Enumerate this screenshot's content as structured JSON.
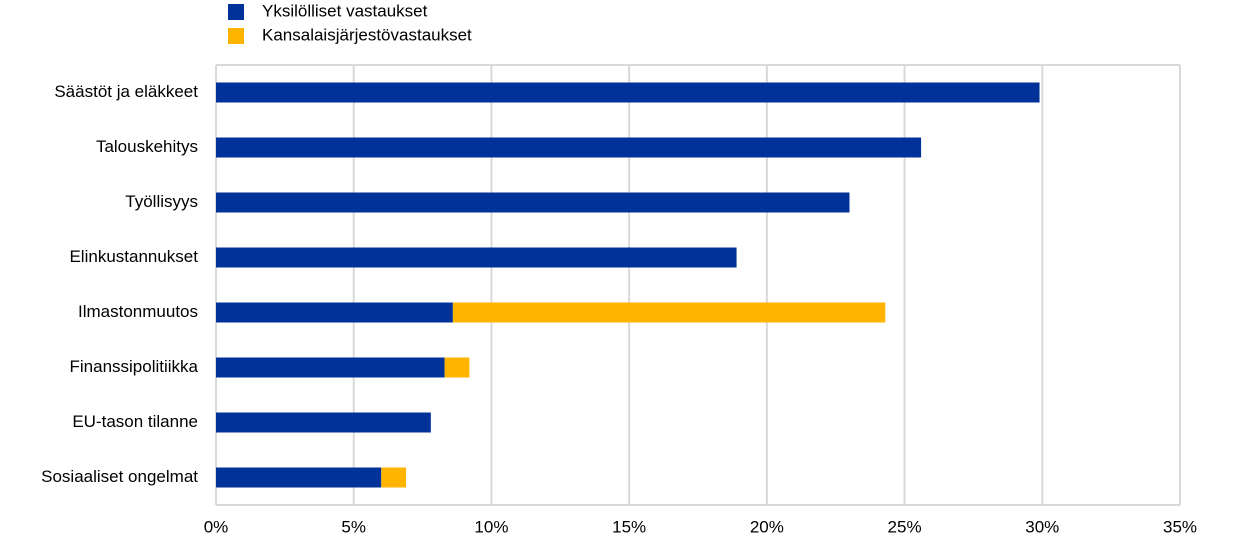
{
  "chart_data": {
    "type": "stacked-bar-horizontal",
    "categories": [
      "Säästöt ja eläkkeet",
      "Talouskehitys",
      "Työllisyys",
      "Elinkustannukset",
      "Ilmastonmuutos",
      "Finanssipolitiikka",
      "EU-tason tilanne",
      "Sosiaaliset ongelmat"
    ],
    "series": [
      {
        "name": "Yksilölliset vastaukset",
        "color": "#003299",
        "values": [
          29.9,
          25.6,
          23.0,
          18.9,
          8.6,
          8.3,
          7.8,
          6.0
        ]
      },
      {
        "name": "Kansalaisjärjestövastaukset",
        "color": "#ffb400",
        "values": [
          0,
          0,
          0,
          0,
          15.7,
          0.9,
          0,
          0.9
        ]
      }
    ],
    "xlim": [
      0,
      35
    ],
    "xticks": [
      {
        "value": 0,
        "label": "0%"
      },
      {
        "value": 5,
        "label": "5%"
      },
      {
        "value": 10,
        "label": "10%"
      },
      {
        "value": 15,
        "label": "15%"
      },
      {
        "value": 20,
        "label": "20%"
      },
      {
        "value": 25,
        "label": "25%"
      },
      {
        "value": 30,
        "label": "30%"
      },
      {
        "value": 35,
        "label": "35%"
      }
    ],
    "grid": true
  }
}
